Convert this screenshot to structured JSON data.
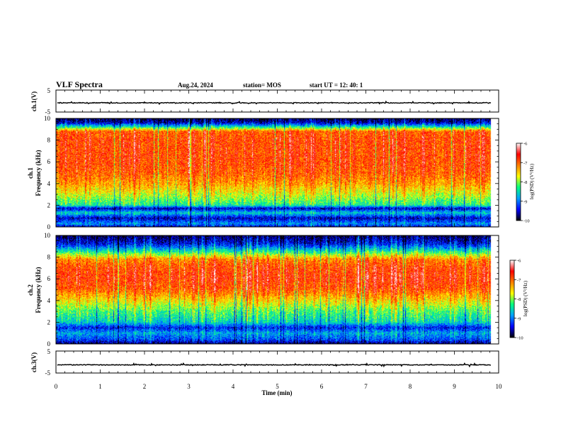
{
  "header": {
    "title": "VLF Spectra",
    "date": "Aug.24, 2024",
    "station": "station= MOS",
    "start_ut": "start  UT =   12: 40: 1"
  },
  "chart_data": [
    {
      "type": "line",
      "panel": "ch1_waveform",
      "ylabel": "ch.1(V)",
      "ylim": [
        -5,
        5
      ],
      "yticks": [
        "5",
        "-5"
      ],
      "x_range": [
        0,
        10
      ],
      "end_x": 9.83,
      "level": -0.8,
      "color": "#000000"
    },
    {
      "type": "heatmap",
      "panel": "ch1_spectrogram",
      "ylabel_lines": [
        "ch.1",
        "Frequency (kHz)"
      ],
      "ylim": [
        0,
        10
      ],
      "yticks": [
        "0",
        "2",
        "4",
        "6",
        "8",
        "10"
      ],
      "x_range": [
        0,
        10
      ],
      "end_x": 9.83,
      "profile": [
        [
          0,
          -9.5
        ],
        [
          0.3,
          -8.9
        ],
        [
          0.8,
          -9.6
        ],
        [
          1.3,
          -8.6
        ],
        [
          1.7,
          -9.6
        ],
        [
          2.0,
          -8.4
        ],
        [
          3.0,
          -7.8
        ],
        [
          4.0,
          -7.3
        ],
        [
          5.0,
          -7.0
        ],
        [
          6.0,
          -6.9
        ],
        [
          7.0,
          -6.9
        ],
        [
          8.0,
          -6.9
        ],
        [
          8.8,
          -7.0
        ],
        [
          9.2,
          -8.4
        ],
        [
          9.6,
          -9.6
        ],
        [
          10,
          -9.9
        ]
      ],
      "colorbar": {
        "label": "log(PSD) (V²/Hz)",
        "min": -10,
        "max": -6,
        "ticks": [
          "-6",
          "-7",
          "-8",
          "-9",
          "-10"
        ],
        "colors": [
          "#000000",
          "#0000ff",
          "#00a0ff",
          "#00ff80",
          "#ffff00",
          "#ff8000",
          "#ff0000",
          "#ffffff"
        ]
      }
    },
    {
      "type": "heatmap",
      "panel": "ch2_spectrogram",
      "ylabel_lines": [
        "ch.2",
        "Frequency (kHz)"
      ],
      "ylim": [
        0,
        10
      ],
      "yticks": [
        "0",
        "2",
        "4",
        "6",
        "8",
        "10"
      ],
      "x_range": [
        0,
        10
      ],
      "end_x": 9.83,
      "profile": [
        [
          0,
          -9.8
        ],
        [
          0.4,
          -9.2
        ],
        [
          1.0,
          -8.8
        ],
        [
          1.5,
          -9.4
        ],
        [
          2.0,
          -8.6
        ],
        [
          3.0,
          -8.2
        ],
        [
          4.0,
          -7.6
        ],
        [
          5.0,
          -7.0
        ],
        [
          6.0,
          -6.8
        ],
        [
          7.0,
          -6.9
        ],
        [
          7.8,
          -7.2
        ],
        [
          8.5,
          -8.4
        ],
        [
          9.2,
          -9.4
        ],
        [
          10,
          -9.9
        ]
      ],
      "colorbar": {
        "label": "log(PSD) (V²/Hz)",
        "min": -10,
        "max": -6,
        "ticks": [
          "-6",
          "-7",
          "-8",
          "-9",
          "-10"
        ],
        "colors": [
          "#000000",
          "#0000ff",
          "#00a0ff",
          "#00ff80",
          "#ffff00",
          "#ff8000",
          "#ff0000",
          "#ffffff"
        ]
      }
    },
    {
      "type": "line",
      "panel": "ch3_waveform",
      "ylabel": "ch.3(V)",
      "ylim": [
        -5,
        5
      ],
      "yticks": [
        "5",
        "-5"
      ],
      "x_range": [
        0,
        10
      ],
      "end_x": 9.83,
      "level": -1.3,
      "color": "#000000"
    }
  ],
  "xaxis": {
    "label": "Time  (min)",
    "ticks": [
      "0",
      "1",
      "2",
      "3",
      "4",
      "5",
      "6",
      "7",
      "8",
      "9",
      "10"
    ],
    "range": [
      0,
      10
    ]
  }
}
